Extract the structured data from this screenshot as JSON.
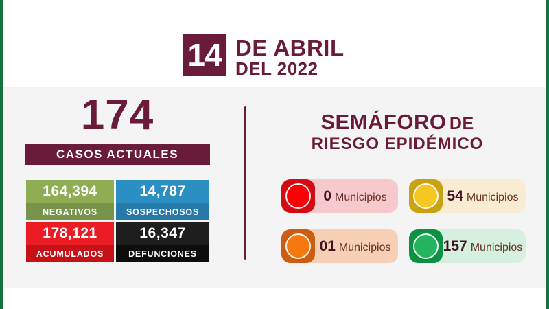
{
  "header": {
    "day": "14",
    "line1": "DE ABRIL",
    "line2": "DEL 2022"
  },
  "left_panel": {
    "current_cases_value": "174",
    "current_cases_label": "CASOS ACTUALES",
    "stats": [
      {
        "value": "164,394",
        "label": "NEGATIVOS",
        "value_bg": "#8fae54",
        "label_bg": "#78934b"
      },
      {
        "value": "14,787",
        "label": "SOSPECHOSOS",
        "value_bg": "#2b8fc3",
        "label_bg": "#2679a8"
      },
      {
        "value": "178,121",
        "label": "ACUMULADOS",
        "value_bg": "#ec1c24",
        "label_bg": "#c51218"
      },
      {
        "value": "16,347",
        "label": "DEFUNCIONES",
        "value_bg": "#1e1e1e",
        "label_bg": "#0d0d0d"
      }
    ]
  },
  "right_panel": {
    "title_strong": "SEMÁFORO",
    "title_suffix": "DE",
    "subtitle": "RIESGO EPIDÉMICO",
    "lights": [
      {
        "name": "rojo",
        "count": "0",
        "unit": "Municipios",
        "square_color": "#d40b13",
        "circle_color": "#fb0007",
        "pill_bg": "#f6c9cd"
      },
      {
        "name": "amarillo",
        "count": "54",
        "unit": "Municipios",
        "square_color": "#c9a212",
        "circle_color": "#f6c621",
        "pill_bg": "#f8ecd2"
      },
      {
        "name": "naranja",
        "count": "01",
        "unit": "Municipios",
        "square_color": "#cc5c12",
        "circle_color": "#f5790e",
        "pill_bg": "#f6cfb5"
      },
      {
        "name": "verde",
        "count": "157",
        "unit": "Municipios",
        "square_color": "#0b9144",
        "circle_color": "#24b35e",
        "pill_bg": "#d5f0de"
      }
    ]
  },
  "colors": {
    "maroon": "#6a1b3a",
    "border_green": "#17713e",
    "panel_bg": "#f4f4f5",
    "count_text": "#431322",
    "unit_text": "#693028"
  },
  "chart_data": [
    {
      "type": "table",
      "title": "Casos COVID — 14 de abril del 2022",
      "categories": [
        "Casos actuales",
        "Negativos",
        "Sospechosos",
        "Acumulados",
        "Defunciones"
      ],
      "values": [
        174,
        164394,
        14787,
        178121,
        16347
      ]
    },
    {
      "type": "table",
      "title": "Semáforo de riesgo epidémico (municipios por color)",
      "categories": [
        "Rojo",
        "Amarillo",
        "Naranja",
        "Verde"
      ],
      "values": [
        0,
        54,
        1,
        157
      ]
    }
  ]
}
